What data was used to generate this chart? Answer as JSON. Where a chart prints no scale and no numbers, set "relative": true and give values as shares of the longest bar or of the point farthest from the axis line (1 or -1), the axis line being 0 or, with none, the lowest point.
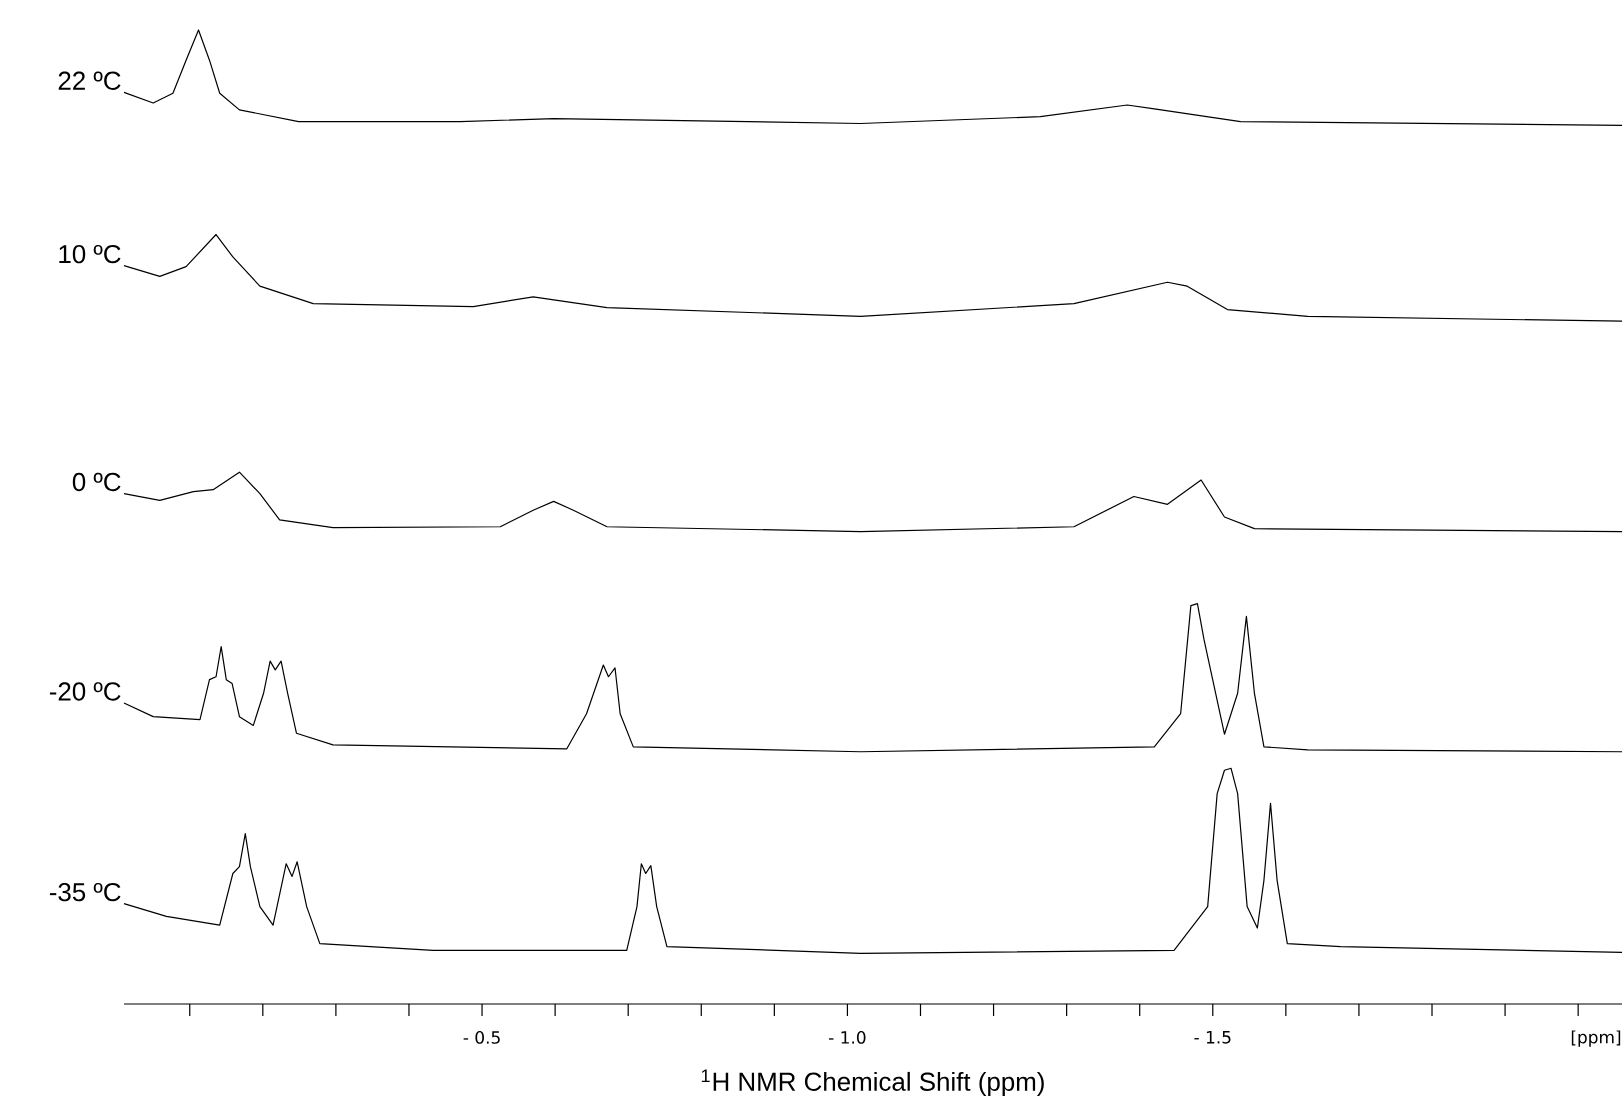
{
  "chart_data": {
    "type": "line",
    "relative": true,
    "xlabel": "$^{1}$H NMR Chemical Shift (ppm)",
    "annotations": [
      "[ppm]"
    ],
    "xlim": [
      -0.01,
      -2.06
    ],
    "xticks": [
      {
        "value": -0.1,
        "label": null
      },
      {
        "value": -0.2,
        "label": null
      },
      {
        "value": -0.3,
        "label": null
      },
      {
        "value": -0.4,
        "label": null
      },
      {
        "value": -0.5,
        "label": "- 0.5"
      },
      {
        "value": -0.6,
        "label": null
      },
      {
        "value": -0.7,
        "label": null
      },
      {
        "value": -0.8,
        "label": null
      },
      {
        "value": -0.9,
        "label": null
      },
      {
        "value": -1.0,
        "label": "- 1.0"
      },
      {
        "value": -1.1,
        "label": null
      },
      {
        "value": -1.2,
        "label": null
      },
      {
        "value": -1.3,
        "label": null
      },
      {
        "value": -1.4,
        "label": null
      },
      {
        "value": -1.5,
        "label": "- 1.5"
      },
      {
        "value": -1.6,
        "label": null
      },
      {
        "value": -1.7,
        "label": null
      },
      {
        "value": -1.8,
        "label": null
      },
      {
        "value": -1.9,
        "label": null
      },
      {
        "value": -2.0,
        "label": null
      }
    ],
    "legend": false,
    "grid": false,
    "marker": "none",
    "line_style": "solid",
    "series": [
      {
        "name": "22 ºC",
        "color": "#000000",
        "x": [
          -0.01,
          -0.05,
          -0.077,
          -0.095,
          -0.112,
          -0.127,
          -0.141,
          -0.168,
          -0.249,
          -0.47,
          -0.598,
          -1.018,
          -1.264,
          -1.383,
          -1.42,
          -1.538,
          -2.06
        ],
        "values": [
          0.936,
          0.925,
          0.935,
          0.969,
          1.0,
          0.969,
          0.935,
          0.918,
          0.906,
          0.906,
          0.909,
          0.904,
          0.911,
          0.923,
          0.919,
          0.906,
          0.902
        ]
      },
      {
        "name": "10 ºC",
        "color": "#000000",
        "x": [
          -0.01,
          -0.059,
          -0.095,
          -0.136,
          -0.159,
          -0.196,
          -0.269,
          -0.488,
          -0.57,
          -0.671,
          -1.018,
          -1.31,
          -1.438,
          -1.465,
          -1.52,
          -1.63,
          -2.06
        ],
        "values": [
          0.758,
          0.747,
          0.757,
          0.79,
          0.767,
          0.737,
          0.719,
          0.716,
          0.726,
          0.715,
          0.706,
          0.719,
          0.741,
          0.737,
          0.713,
          0.706,
          0.701
        ]
      },
      {
        "name": "0 ºC",
        "color": "#000000",
        "x": [
          -0.01,
          -0.059,
          -0.105,
          -0.132,
          -0.168,
          -0.196,
          -0.223,
          -0.296,
          -0.525,
          -0.57,
          -0.598,
          -0.625,
          -0.671,
          -1.018,
          -1.31,
          -1.392,
          -1.438,
          -1.484,
          -1.516,
          -1.557,
          -2.06
        ],
        "values": [
          0.524,
          0.517,
          0.526,
          0.528,
          0.546,
          0.524,
          0.497,
          0.489,
          0.49,
          0.507,
          0.516,
          0.507,
          0.49,
          0.485,
          0.49,
          0.521,
          0.513,
          0.538,
          0.5,
          0.488,
          0.485
        ]
      },
      {
        "name": "-20 ºC",
        "color": "#000000",
        "x": [
          -0.01,
          -0.05,
          -0.114,
          -0.127,
          -0.136,
          -0.143,
          -0.15,
          -0.158,
          -0.168,
          -0.187,
          -0.201,
          -0.21,
          -0.217,
          -0.225,
          -0.234,
          -0.246,
          -0.296,
          -0.616,
          -0.643,
          -0.666,
          -0.673,
          -0.682,
          -0.689,
          -0.707,
          -1.018,
          -1.42,
          -1.456,
          -1.47,
          -1.479,
          -1.488,
          -1.516,
          -1.534,
          -1.546,
          -1.557,
          -1.57,
          -1.63,
          -2.06
        ],
        "values": [
          0.309,
          0.295,
          0.292,
          0.333,
          0.336,
          0.367,
          0.333,
          0.329,
          0.295,
          0.286,
          0.319,
          0.352,
          0.343,
          0.352,
          0.319,
          0.278,
          0.266,
          0.262,
          0.298,
          0.348,
          0.336,
          0.345,
          0.298,
          0.264,
          0.259,
          0.264,
          0.298,
          0.409,
          0.411,
          0.374,
          0.277,
          0.319,
          0.398,
          0.319,
          0.264,
          0.261,
          0.259
        ]
      },
      {
        "name": "-35 ºC",
        "color": "#000000",
        "x": [
          -0.01,
          -0.068,
          -0.141,
          -0.159,
          -0.168,
          -0.176,
          -0.183,
          -0.196,
          -0.214,
          -0.232,
          -0.24,
          -0.247,
          -0.26,
          -0.278,
          -0.433,
          -0.698,
          -0.712,
          -0.718,
          -0.724,
          -0.731,
          -0.739,
          -0.753,
          -1.018,
          -1.447,
          -1.493,
          -1.506,
          -1.516,
          -1.525,
          -1.534,
          -1.547,
          -1.561,
          -1.57,
          -1.579,
          -1.588,
          -1.602,
          -1.675,
          -2.06
        ],
        "values": [
          0.103,
          0.09,
          0.081,
          0.134,
          0.141,
          0.175,
          0.141,
          0.1,
          0.081,
          0.144,
          0.131,
          0.146,
          0.1,
          0.062,
          0.055,
          0.055,
          0.1,
          0.144,
          0.134,
          0.142,
          0.1,
          0.059,
          0.052,
          0.055,
          0.1,
          0.216,
          0.24,
          0.242,
          0.216,
          0.1,
          0.078,
          0.127,
          0.206,
          0.127,
          0.062,
          0.059,
          0.053
        ]
      }
    ]
  }
}
